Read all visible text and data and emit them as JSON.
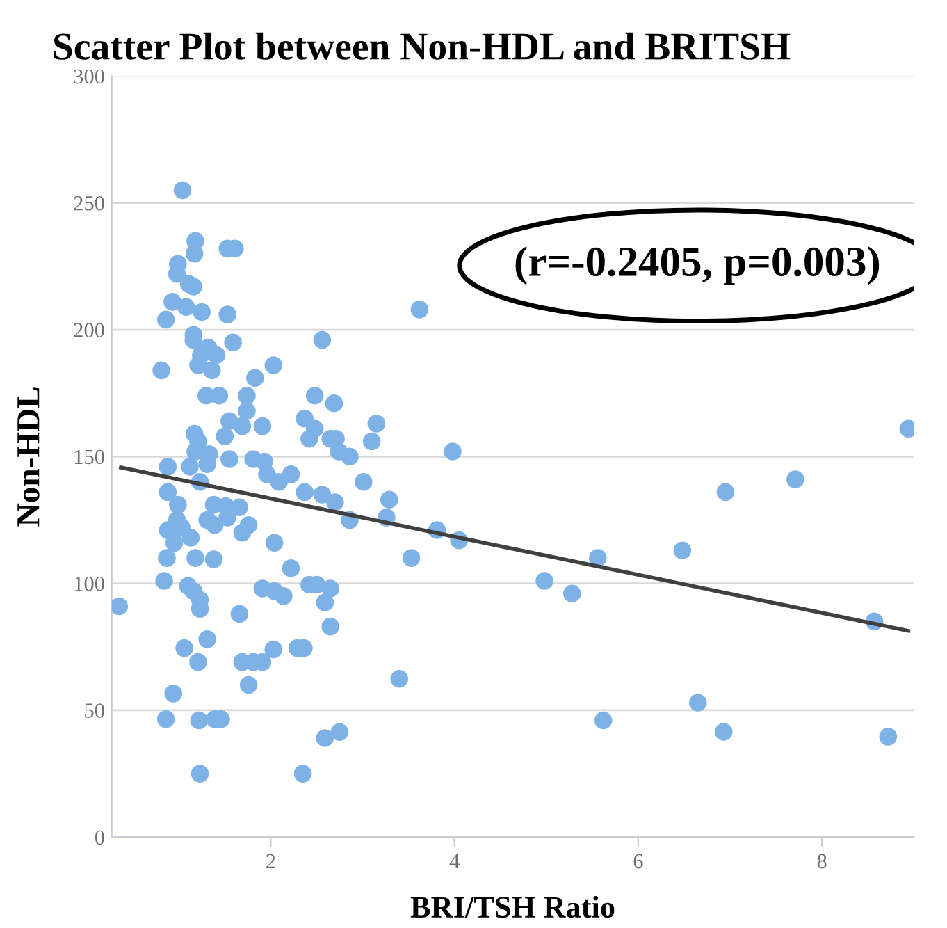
{
  "chart_data": {
    "type": "scatter",
    "title": "Scatter Plot between Non-HDL and BRITSH",
    "xlabel": "BRI/TSH Ratio",
    "ylabel": "Non-HDL",
    "annotations": [
      "(r=-0.2405, p=0.003)"
    ],
    "xlim": [
      0.27,
      9.0
    ],
    "xticks": [
      2,
      4,
      6,
      8
    ],
    "ylim": [
      0,
      300
    ],
    "yticks": [
      0,
      50,
      100,
      150,
      200,
      250,
      300
    ],
    "grid": "y",
    "series": [
      {
        "marker": "circle",
        "color": "#7eb2e6",
        "x": [
          1.04,
          1.18,
          1.17,
          1.53,
          1.61,
          0.99,
          0.98,
          1.11,
          1.16,
          0.93,
          1.08,
          1.25,
          1.53,
          0.86,
          1.16,
          1.16,
          1.59,
          2.56,
          1.32,
          1.41,
          1.24,
          1.21,
          0.81,
          1.36,
          2.03,
          1.83,
          1.3,
          1.44,
          1.74,
          2.48,
          2.69,
          1.74,
          1.55,
          2.37,
          2.48,
          1.69,
          1.91,
          1.5,
          2.42,
          2.65,
          1.17,
          1.21,
          0.88,
          1.12,
          1.31,
          1.33,
          1.18,
          1.55,
          1.81,
          1.93,
          1.96,
          2.09,
          2.22,
          1.23,
          0.88,
          2.37,
          2.56,
          0.99,
          1.38,
          1.51,
          1.66,
          1.53,
          1.31,
          1.39,
          0.98,
          0.88,
          1.03,
          1.13,
          0.95,
          1.76,
          1.69,
          2.04,
          1.18,
          1.38,
          0.87,
          2.22,
          0.84,
          1.1,
          1.16,
          1.23,
          1.23,
          1.91,
          2.04,
          2.14,
          2.42,
          2.5,
          2.65,
          2.59,
          2.65,
          0.35,
          1.66,
          1.31,
          1.06,
          1.21,
          1.69,
          1.81,
          1.91,
          2.03,
          2.29,
          2.36,
          1.76,
          0.94,
          0.86,
          1.22,
          1.39,
          1.46,
          1.23,
          2.35,
          2.59,
          2.75,
          3.62,
          3.15,
          3.1,
          2.71,
          2.74,
          2.86,
          3.98,
          3.01,
          2.7,
          3.29,
          2.86,
          3.26,
          3.81,
          4.05,
          3.53,
          4.98,
          5.28,
          3.4,
          8.94,
          7.71,
          6.95,
          6.48,
          5.56,
          8.57,
          6.65,
          5.62,
          6.93,
          8.72
        ],
        "values": [
          255,
          235,
          230,
          232,
          232,
          226,
          222,
          218,
          217,
          211,
          209,
          207,
          206,
          204,
          198,
          196,
          195,
          196,
          193,
          190,
          190,
          186,
          184,
          184,
          186,
          181,
          174,
          174,
          174,
          174,
          171,
          168,
          164,
          165,
          161,
          162,
          162,
          158,
          157,
          157,
          159,
          156,
          146,
          146,
          147,
          151,
          152,
          149,
          149,
          148,
          143,
          140,
          143,
          140,
          136,
          136,
          135,
          131,
          131,
          130.5,
          130,
          126,
          125,
          123,
          125,
          121,
          122,
          118,
          116,
          123,
          120,
          116,
          110,
          109.5,
          110,
          106,
          101,
          99,
          97,
          93.5,
          90,
          98,
          97,
          95,
          99.5,
          99.5,
          98,
          92.5,
          83,
          91,
          88,
          78,
          74.5,
          69,
          69,
          69,
          69,
          74,
          74.5,
          74.5,
          60,
          56.6,
          46.5,
          46,
          46.5,
          46.5,
          25,
          25,
          39,
          41.4,
          208,
          163,
          156,
          157,
          152,
          150,
          152,
          140,
          132,
          133,
          125,
          126,
          121,
          117,
          110,
          101,
          96,
          62.4,
          161,
          141,
          136,
          113,
          110,
          85,
          53,
          46,
          41.5,
          39.6
        ]
      },
      {
        "type": "line",
        "color": "#404040",
        "line_style": "solid",
        "x": [
          0.37,
          8.94
        ],
        "values": [
          145.7,
          81.3
        ]
      }
    ]
  }
}
